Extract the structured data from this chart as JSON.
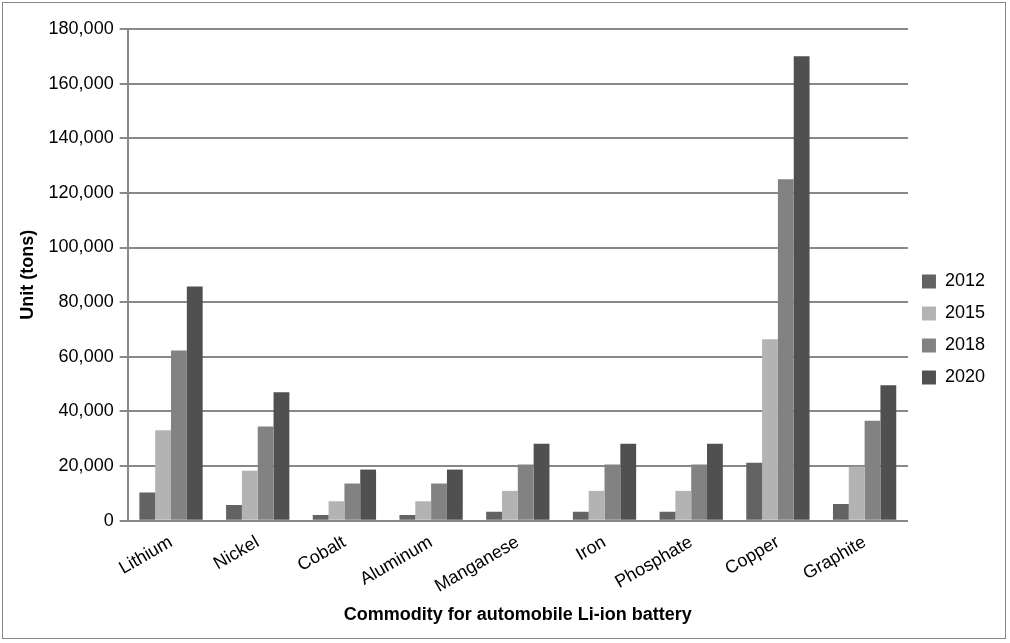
{
  "chart_data": {
    "type": "bar",
    "xlabel": "Commodity for automobile Li-ion battery",
    "ylabel": "Unit (tons)",
    "categories": [
      "Lithium",
      "Nickel",
      "Cobalt",
      "Aluminum",
      "Manganese",
      "Iron",
      "Phosphate",
      "Copper",
      "Graphite"
    ],
    "series": [
      {
        "name": "2012",
        "color": "#636363",
        "values": [
          10300,
          5700,
          2100,
          2100,
          3300,
          3300,
          3300,
          21200,
          6100
        ]
      },
      {
        "name": "2015",
        "color": "#b3b3b3",
        "values": [
          33100,
          18300,
          7100,
          7100,
          10900,
          10900,
          10900,
          66400,
          19700
        ]
      },
      {
        "name": "2018",
        "color": "#828282",
        "values": [
          62300,
          34500,
          13600,
          13600,
          20600,
          20600,
          20600,
          125000,
          36600
        ]
      },
      {
        "name": "2020",
        "color": "#505050",
        "values": [
          85700,
          47000,
          18700,
          18700,
          28200,
          28200,
          28200,
          170000,
          49600
        ]
      }
    ],
    "ylim": [
      0,
      180000
    ],
    "yticks": [
      {
        "value": 0,
        "label": "0"
      },
      {
        "value": 20000,
        "label": "20,000"
      },
      {
        "value": 40000,
        "label": "40,000"
      },
      {
        "value": 60000,
        "label": "60,000"
      },
      {
        "value": 80000,
        "label": "80,000"
      },
      {
        "value": 100000,
        "label": "100,000"
      },
      {
        "value": 120000,
        "label": "120,000"
      },
      {
        "value": 140000,
        "label": "140,000"
      },
      {
        "value": 160000,
        "label": "160,000"
      },
      {
        "value": 180000,
        "label": "180,000"
      }
    ],
    "grid": "y",
    "legend": "right"
  }
}
